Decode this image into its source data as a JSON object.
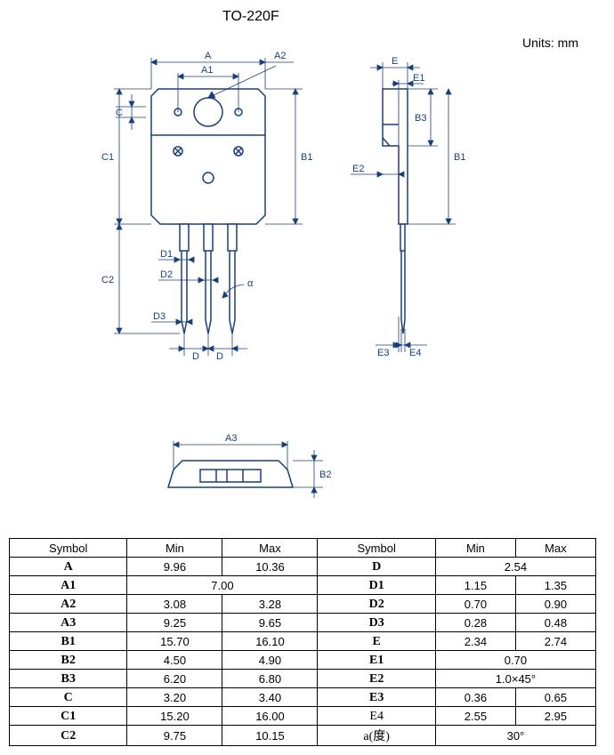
{
  "title": "TO-220F",
  "units_label": "Units: mm",
  "colors": {
    "line": "#1a3e7a",
    "text": "#000000",
    "bg": "#ffffff"
  },
  "labels": {
    "A": "A",
    "A1": "A1",
    "A2": "A2",
    "A3": "A3",
    "B1": "B1",
    "B2": "B2",
    "B3": "B3",
    "C": "C",
    "C1": "C1",
    "C2": "C2",
    "D": "D",
    "D1": "D1",
    "D2": "D2",
    "D3": "D3",
    "E": "E",
    "E1": "E1",
    "E2": "E2",
    "E3": "E3",
    "E4": "E4",
    "alpha": "α"
  },
  "table": {
    "headers": [
      "Symbol",
      "Min",
      "Max",
      "Symbol",
      "Min",
      "Max"
    ],
    "rows": [
      {
        "l": "A",
        "lmin": "9.96",
        "lmax": "10.36",
        "r": "D",
        "rspan": "2.54"
      },
      {
        "l": "A1",
        "lspan": "7.00",
        "r": "D1",
        "rmin": "1.15",
        "rmax": "1.35"
      },
      {
        "l": "A2",
        "lmin": "3.08",
        "lmax": "3.28",
        "r": "D2",
        "rmin": "0.70",
        "rmax": "0.90"
      },
      {
        "l": "A3",
        "lmin": "9.25",
        "lmax": "9.65",
        "r": "D3",
        "rmin": "0.28",
        "rmax": "0.48"
      },
      {
        "l": "B1",
        "lmin": "15.70",
        "lmax": "16.10",
        "r": "E",
        "rmin": "2.34",
        "rmax": "2.74"
      },
      {
        "l": "B2",
        "lmin": "4.50",
        "lmax": "4.90",
        "r": "E1",
        "rspan": "0.70"
      },
      {
        "l": "B3",
        "lmin": "6.20",
        "lmax": "6.80",
        "r": "E2",
        "rspan": "1.0×45°"
      },
      {
        "l": "C",
        "lmin": "3.20",
        "lmax": "3.40",
        "r": "E3",
        "rmin": "0.36",
        "rmax": "0.65"
      },
      {
        "l": "C1",
        "lmin": "15.20",
        "lmax": "16.00",
        "r": "E4",
        "rmin": "2.55",
        "rmax": "2.95",
        "rplain": true
      },
      {
        "l": "C2",
        "lmin": "9.75",
        "lmax": "10.15",
        "r": "a(度)",
        "rspan": "30°",
        "rplain": true
      }
    ]
  }
}
